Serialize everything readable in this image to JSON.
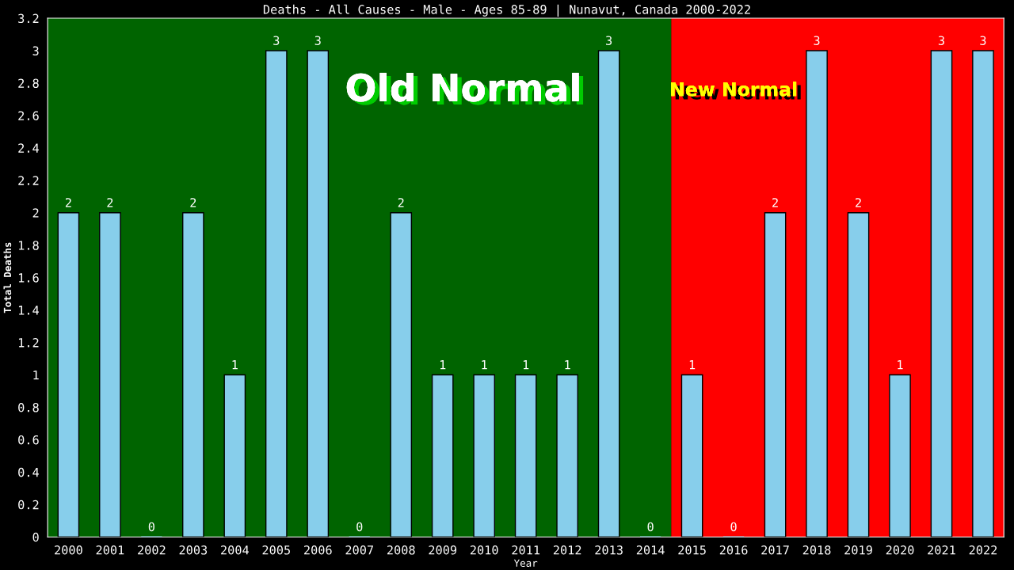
{
  "chart_data": {
    "type": "bar",
    "title": "Deaths - All Causes - Male - Ages 85-89 | Nunavut, Canada 2000-2022",
    "xlabel": "Year",
    "ylabel": "Total Deaths",
    "categories": [
      "2000",
      "2001",
      "2002",
      "2003",
      "2004",
      "2005",
      "2006",
      "2007",
      "2008",
      "2009",
      "2010",
      "2011",
      "2012",
      "2013",
      "2014",
      "2015",
      "2016",
      "2017",
      "2018",
      "2019",
      "2020",
      "2021",
      "2022"
    ],
    "values": [
      2,
      2,
      0,
      2,
      1,
      3,
      3,
      0,
      2,
      1,
      1,
      1,
      1,
      3,
      0,
      1,
      0,
      2,
      3,
      2,
      1,
      3,
      3
    ],
    "color": "#87ceeb",
    "data_labels": true,
    "ylim": [
      0,
      3.2
    ],
    "yticks": [
      0,
      {
        "value": 0.2,
        "label": "0.2"
      },
      {
        "value": 0.4,
        "label": "0.4"
      },
      {
        "value": 0.6,
        "label": "0.6"
      },
      {
        "value": 0.8,
        "label": "0.8"
      },
      1,
      {
        "value": 1.2,
        "label": "1.2"
      },
      {
        "value": 1.4,
        "label": "1.4"
      },
      {
        "value": 1.6,
        "label": "1.6"
      },
      {
        "value": 1.8,
        "label": "1.8"
      },
      2,
      {
        "value": 2.2,
        "label": "2.2"
      },
      {
        "value": 2.4,
        "label": "2.4"
      },
      {
        "value": 2.6,
        "label": "2.6"
      },
      {
        "value": 2.8,
        "label": "2.8"
      },
      3,
      {
        "value": 3.2,
        "label": "3.2"
      }
    ],
    "bands": [
      {
        "axis": "x",
        "from": "2000",
        "to": "2014",
        "label": "Old Normal",
        "color": "#006400"
      },
      {
        "axis": "x",
        "from": "2015",
        "to": "2022",
        "label": "New Normal",
        "color": "#ff0000"
      }
    ],
    "grid": false,
    "legend": false
  }
}
